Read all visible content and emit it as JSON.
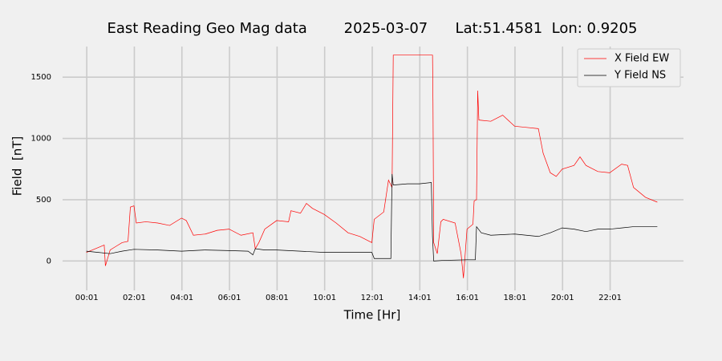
{
  "chart_data": {
    "type": "line",
    "title": "East Reading Geo Mag data        2025-03-07      Lat:51.4581  Lon: 0.9205",
    "x_label": "Time  [Hr]",
    "y_label": "Field  [nT]",
    "xlim": [
      -1,
      25.1
    ],
    "ylim": [
      -240,
      1750
    ],
    "xticks": [
      {
        "value": 0.0167,
        "label": "00:01"
      },
      {
        "value": 2.0167,
        "label": "02:01"
      },
      {
        "value": 4.0167,
        "label": "04:01"
      },
      {
        "value": 6.0167,
        "label": "06:01"
      },
      {
        "value": 8.0167,
        "label": "08:01"
      },
      {
        "value": 10.0167,
        "label": "10:01"
      },
      {
        "value": 12.0167,
        "label": "12:01"
      },
      {
        "value": 14.0167,
        "label": "14:01"
      },
      {
        "value": 16.0167,
        "label": "16:01"
      },
      {
        "value": 18.0167,
        "label": "18:01"
      },
      {
        "value": 20.0167,
        "label": "20:01"
      },
      {
        "value": 22.0167,
        "label": "22:01"
      }
    ],
    "yticks": [
      0,
      500,
      1000,
      1500
    ],
    "grid": true,
    "legend": "upper right",
    "series": [
      {
        "name": "X Field EW",
        "color": "#ff0000",
        "x": [
          0,
          0.5,
          0.75,
          0.8,
          1,
          1.25,
          1.5,
          1.75,
          1.85,
          2,
          2.1,
          2.5,
          3,
          3.5,
          4,
          4.2,
          4.5,
          5,
          5.5,
          6,
          6.5,
          7,
          7.1,
          7.25,
          7.5,
          8,
          8.5,
          8.6,
          9,
          9.25,
          9.5,
          10,
          10.5,
          11,
          11.5,
          12,
          12.1,
          12.5,
          12.7,
          12.85,
          12.9,
          13.5,
          14,
          14.55,
          14.57,
          14.6,
          14.75,
          14.9,
          15,
          15.5,
          15.75,
          15.85,
          16,
          16.25,
          16.3,
          16.4,
          16.45,
          16.5,
          17,
          17.5,
          18,
          18.5,
          19,
          19.2,
          19.5,
          19.75,
          20,
          20.5,
          20.75,
          21,
          21.5,
          22,
          22.5,
          22.75,
          23,
          23.5,
          24
        ],
        "values": [
          70,
          110,
          130,
          -40,
          90,
          120,
          150,
          160,
          440,
          450,
          310,
          320,
          310,
          290,
          350,
          330,
          210,
          220,
          250,
          260,
          210,
          230,
          100,
          150,
          260,
          330,
          320,
          410,
          390,
          470,
          430,
          380,
          310,
          230,
          200,
          150,
          340,
          400,
          660,
          600,
          1680,
          1680,
          1680,
          1680,
          1300,
          150,
          60,
          320,
          340,
          310,
          60,
          -140,
          260,
          300,
          490,
          500,
          1390,
          1150,
          1140,
          1190,
          1100,
          1090,
          1080,
          880,
          720,
          690,
          750,
          780,
          850,
          780,
          730,
          720,
          790,
          780,
          600,
          520,
          480
        ]
      },
      {
        "name": "Y Field NS",
        "color": "#000000",
        "x": [
          0,
          0.5,
          1,
          1.5,
          2,
          3,
          4,
          5,
          6,
          6.8,
          7,
          7.1,
          7.5,
          8,
          9,
          10,
          11,
          12,
          12.1,
          12.8,
          12.85,
          12.9,
          13.5,
          14,
          14.5,
          14.55,
          14.6,
          15,
          16,
          16.35,
          16.4,
          16.6,
          17,
          18,
          19,
          19.5,
          20,
          20.5,
          21,
          21.5,
          22,
          22.5,
          23,
          24
        ],
        "values": [
          80,
          70,
          60,
          80,
          95,
          90,
          80,
          90,
          85,
          80,
          50,
          100,
          90,
          90,
          80,
          70,
          70,
          70,
          20,
          20,
          710,
          620,
          630,
          630,
          640,
          200,
          0,
          5,
          10,
          10,
          280,
          230,
          210,
          220,
          200,
          230,
          270,
          260,
          240,
          260,
          260,
          270,
          280,
          280
        ]
      }
    ]
  }
}
